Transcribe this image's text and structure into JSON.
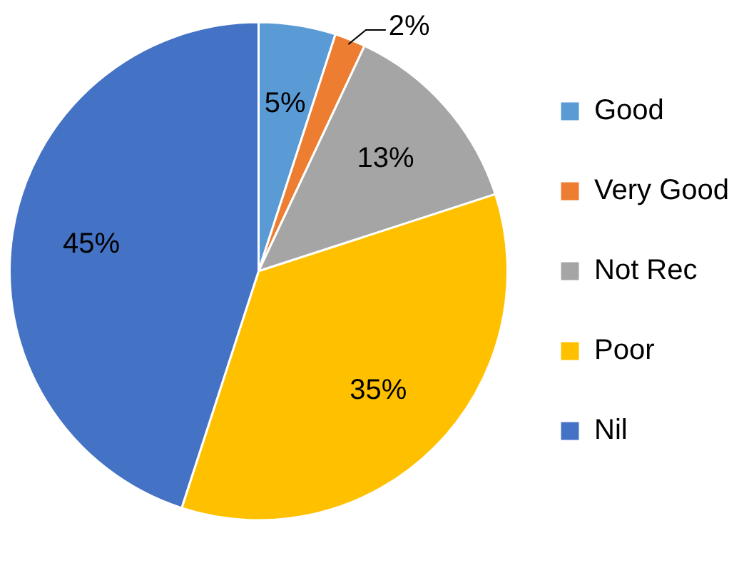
{
  "chart_data": {
    "type": "pie",
    "categories": [
      "Good",
      "Very Good",
      "Not Rec",
      "Poor",
      "Nil"
    ],
    "values": [
      5,
      2,
      13,
      35,
      45
    ],
    "colors": [
      "#5b9bd5",
      "#ed7d31",
      "#a5a5a5",
      "#ffc000",
      "#4472c4"
    ],
    "value_labels": [
      "5%",
      "2%",
      "13%",
      "35%",
      "45%"
    ],
    "legend": "right"
  }
}
